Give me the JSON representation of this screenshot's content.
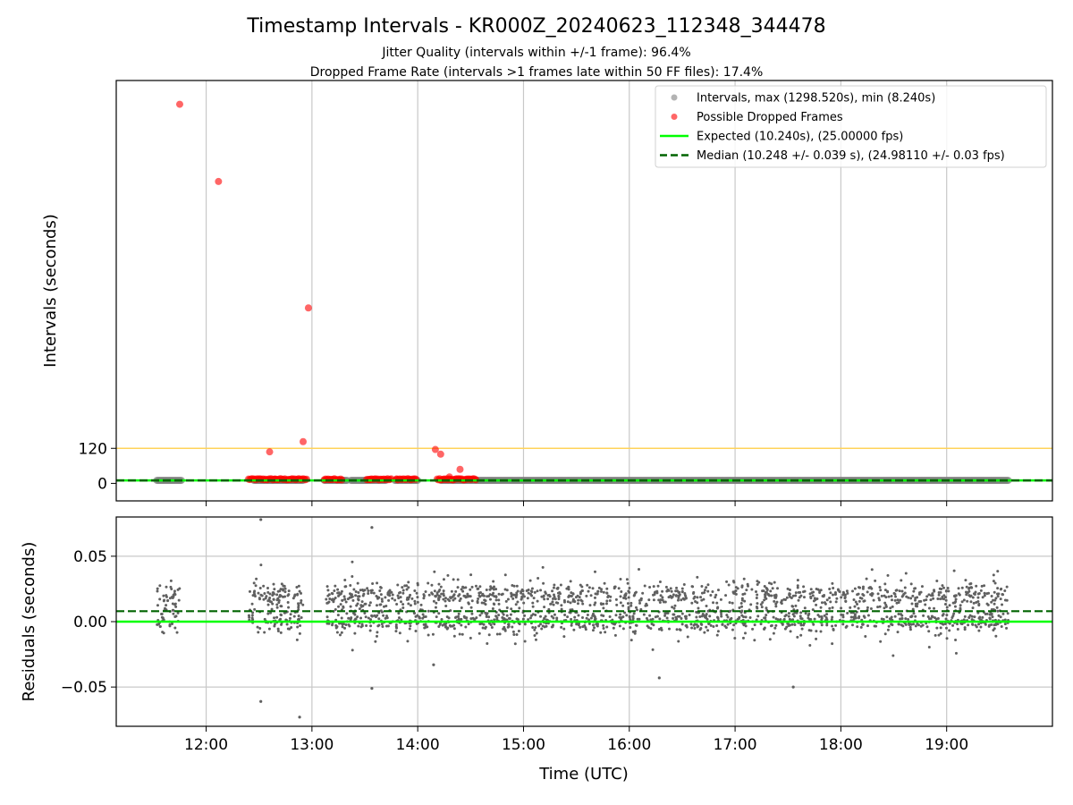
{
  "figure": {
    "title": "Timestamp Intervals - KR000Z_20240623_112348_344478",
    "subtitle_1": "Jitter Quality (intervals within +/-1 frame): 96.4%",
    "subtitle_2": "Dropped Frame Rate (intervals >1 frames late within 50 FF files): 17.4%"
  },
  "colors": {
    "intervals": "#808080",
    "dropped": "#ff0000",
    "expected": "#00ff00",
    "median": "#006400",
    "threshold": "#ffd35a",
    "grid": "#c8c8c8",
    "residuals": "#606060"
  },
  "chart_data": [
    {
      "type": "scatter",
      "panel": "intervals",
      "ylabel": "Intervals (seconds)",
      "yticks": [
        0,
        120
      ],
      "ylim": [
        -60,
        1380
      ],
      "xlim": [
        "11:09",
        "20:00"
      ],
      "xticks": [
        "12:00",
        "13:00",
        "14:00",
        "15:00",
        "16:00",
        "17:00",
        "18:00",
        "19:00"
      ],
      "grid": "vertical",
      "threshold_line": 120,
      "expected": 10.24,
      "median": 10.248,
      "legend_position": "top-right",
      "legend": [
        "Intervals, max (1298.520s), min (8.240s)",
        "Possible Dropped Frames",
        "Expected (10.240s), (25.00000 fps)",
        "Median (10.248 +/- 0.039 s), (24.98110 +/- 0.03 fps)"
      ],
      "interval_segments": [
        [
          "11:32",
          "11:46"
        ],
        [
          "12:27",
          "12:55"
        ],
        [
          "13:07",
          "13:20"
        ],
        [
          "13:22",
          "13:42"
        ],
        [
          "13:47",
          "14:00"
        ],
        [
          "14:13",
          "19:35"
        ]
      ],
      "dropped_points": [
        {
          "x": "11:45",
          "y": 1298.5
        },
        {
          "x": "12:07",
          "y": 1034
        },
        {
          "x": "12:36",
          "y": 108
        },
        {
          "x": "12:55",
          "y": 143
        },
        {
          "x": "12:58",
          "y": 601
        },
        {
          "x": "14:10",
          "y": 116
        },
        {
          "x": "14:13",
          "y": 100
        },
        {
          "x": "14:18",
          "y": 22
        },
        {
          "x": "14:24",
          "y": 48
        },
        {
          "x": "13:48",
          "y": 15
        },
        {
          "x": "12:39",
          "y": 14
        },
        {
          "x": "13:33",
          "y": 14
        }
      ],
      "dropped_bands": [
        [
          "12:24",
          "12:57"
        ],
        [
          "13:07",
          "13:17"
        ],
        [
          "13:31",
          "13:45"
        ],
        [
          "13:48",
          "13:59"
        ],
        [
          "14:11",
          "14:33"
        ]
      ]
    },
    {
      "type": "scatter",
      "panel": "residuals",
      "xlabel": "Time (UTC)",
      "ylabel": "Residuals (seconds)",
      "yticks": [
        -0.05,
        0.0,
        0.05
      ],
      "ytick_labels": [
        "−0.05",
        "0.00",
        "0.05"
      ],
      "ylim": [
        -0.08,
        0.08
      ],
      "xlim": [
        "11:09",
        "20:00"
      ],
      "xticks": [
        "12:00",
        "13:00",
        "14:00",
        "15:00",
        "16:00",
        "17:00",
        "18:00",
        "19:00"
      ],
      "grid": "both",
      "expected": 0.0,
      "median": 0.008,
      "segments": [
        [
          "11:32",
          "11:45"
        ],
        [
          "12:24",
          "12:55"
        ],
        [
          "13:08",
          "19:35"
        ]
      ],
      "outliers": [
        {
          "x": "12:31",
          "y": 0.078
        },
        {
          "x": "13:34",
          "y": 0.072
        },
        {
          "x": "12:31",
          "y": -0.061
        },
        {
          "x": "12:53",
          "y": -0.073
        },
        {
          "x": "13:34",
          "y": -0.051
        },
        {
          "x": "17:33",
          "y": -0.05
        },
        {
          "x": "16:17",
          "y": -0.043
        },
        {
          "x": "14:09",
          "y": -0.033
        }
      ]
    }
  ]
}
